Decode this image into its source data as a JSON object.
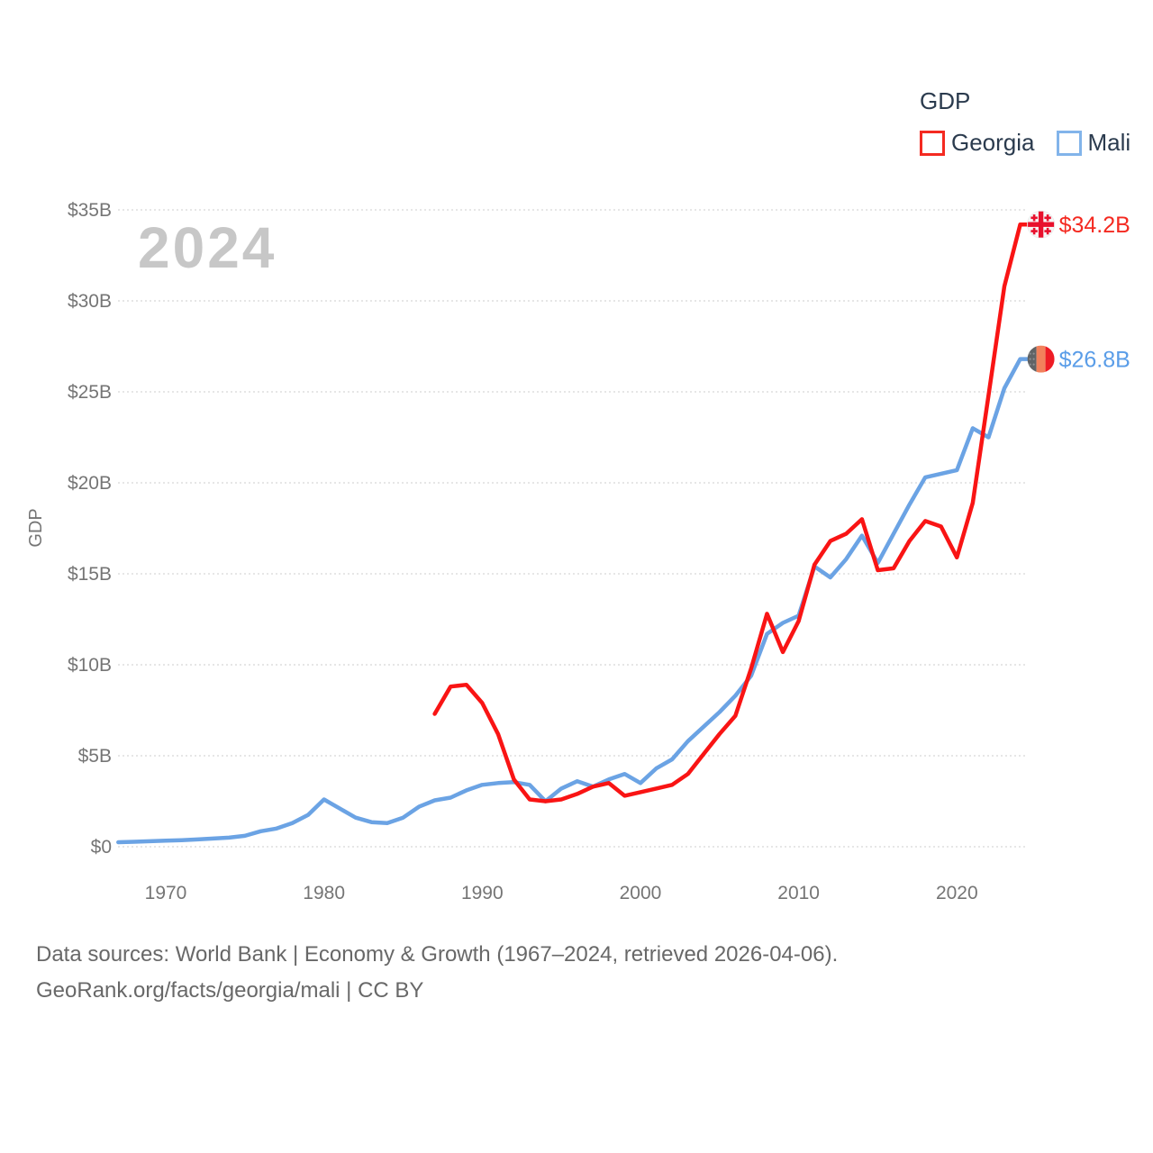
{
  "legend": {
    "title": "GDP",
    "items": [
      {
        "label": "Georgia",
        "color": "#f42a21"
      },
      {
        "label": "Mali",
        "color": "#82b4ea"
      }
    ]
  },
  "chart_data": {
    "type": "line",
    "watermark": "2024",
    "ylabel": "GDP",
    "xlim": [
      1967,
      2024
    ],
    "ylim": [
      0,
      35
    ],
    "grid": true,
    "legend_position": "top-right",
    "y_ticks": [
      {
        "value": 0,
        "label": "$0"
      },
      {
        "value": 5,
        "label": "$5B"
      },
      {
        "value": 10,
        "label": "$10B"
      },
      {
        "value": 15,
        "label": "$15B"
      },
      {
        "value": 20,
        "label": "$20B"
      },
      {
        "value": 25,
        "label": "$25B"
      },
      {
        "value": 30,
        "label": "$30B"
      },
      {
        "value": 35,
        "label": "$35B"
      }
    ],
    "x_ticks": [
      {
        "value": 1970,
        "label": "1970"
      },
      {
        "value": 1980,
        "label": "1980"
      },
      {
        "value": 1990,
        "label": "1990"
      },
      {
        "value": 2000,
        "label": "2000"
      },
      {
        "value": 2010,
        "label": "2010"
      },
      {
        "value": 2020,
        "label": "2020"
      }
    ],
    "series": [
      {
        "name": "Georgia",
        "color": "#f91414",
        "end_label": "$34.2B",
        "end_label_color": "#f42a21",
        "end_marker": "georgia-flag",
        "start_year": 1987,
        "unit": "billion USD",
        "values": [
          7.3,
          8.8,
          8.9,
          7.9,
          6.2,
          3.7,
          2.6,
          2.5,
          2.6,
          2.9,
          3.3,
          3.5,
          2.8,
          3.0,
          3.2,
          3.4,
          4.0,
          5.1,
          6.2,
          7.2,
          9.8,
          12.8,
          10.7,
          12.4,
          15.5,
          16.8,
          17.2,
          18.0,
          15.2,
          15.3,
          16.8,
          17.9,
          17.6,
          15.9,
          18.9,
          24.8,
          30.8,
          34.2
        ]
      },
      {
        "name": "Mali",
        "color": "#6ba3e4",
        "end_label": "$26.8B",
        "end_label_color": "#5a9de8",
        "end_marker": "mali-flag",
        "start_year": 1967,
        "unit": "billion USD",
        "values": [
          0.25,
          0.27,
          0.3,
          0.33,
          0.36,
          0.4,
          0.45,
          0.5,
          0.6,
          0.85,
          1.0,
          1.3,
          1.75,
          2.6,
          2.1,
          1.6,
          1.35,
          1.3,
          1.6,
          2.2,
          2.55,
          2.7,
          3.1,
          3.4,
          3.5,
          3.55,
          3.4,
          2.5,
          3.2,
          3.6,
          3.3,
          3.7,
          4.0,
          3.5,
          4.3,
          4.8,
          5.8,
          6.6,
          7.4,
          8.3,
          9.4,
          11.7,
          12.3,
          12.7,
          15.4,
          14.8,
          15.8,
          17.1,
          15.6,
          17.2,
          18.8,
          20.3,
          20.5,
          20.7,
          23.0,
          22.5,
          25.2,
          26.8
        ]
      }
    ]
  },
  "footer": {
    "line1": "Data sources: World Bank | Economy & Growth (1967–2024, retrieved 2026-04-06).",
    "line2": "GeoRank.org/facts/georgia/mali | CC BY"
  }
}
